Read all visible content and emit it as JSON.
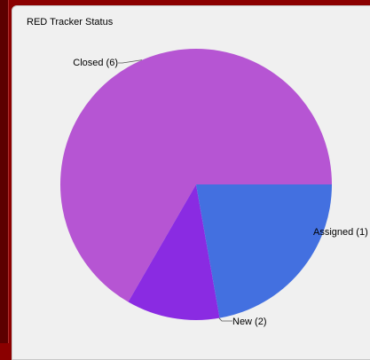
{
  "panel": {
    "title": "RED Tracker Status"
  },
  "chart_data": {
    "type": "pie",
    "title": "RED Tracker Status",
    "categories": [
      "Closed",
      "Assigned",
      "New"
    ],
    "values": [
      6,
      1,
      2
    ],
    "labels": [
      "Closed (6)",
      "Assigned (1)",
      "New (2)"
    ],
    "colors": [
      "#b655d3",
      "#8a2be2",
      "#4370e0"
    ],
    "start_direction": "right",
    "direction": "counterclockwise",
    "legend": "none"
  }
}
